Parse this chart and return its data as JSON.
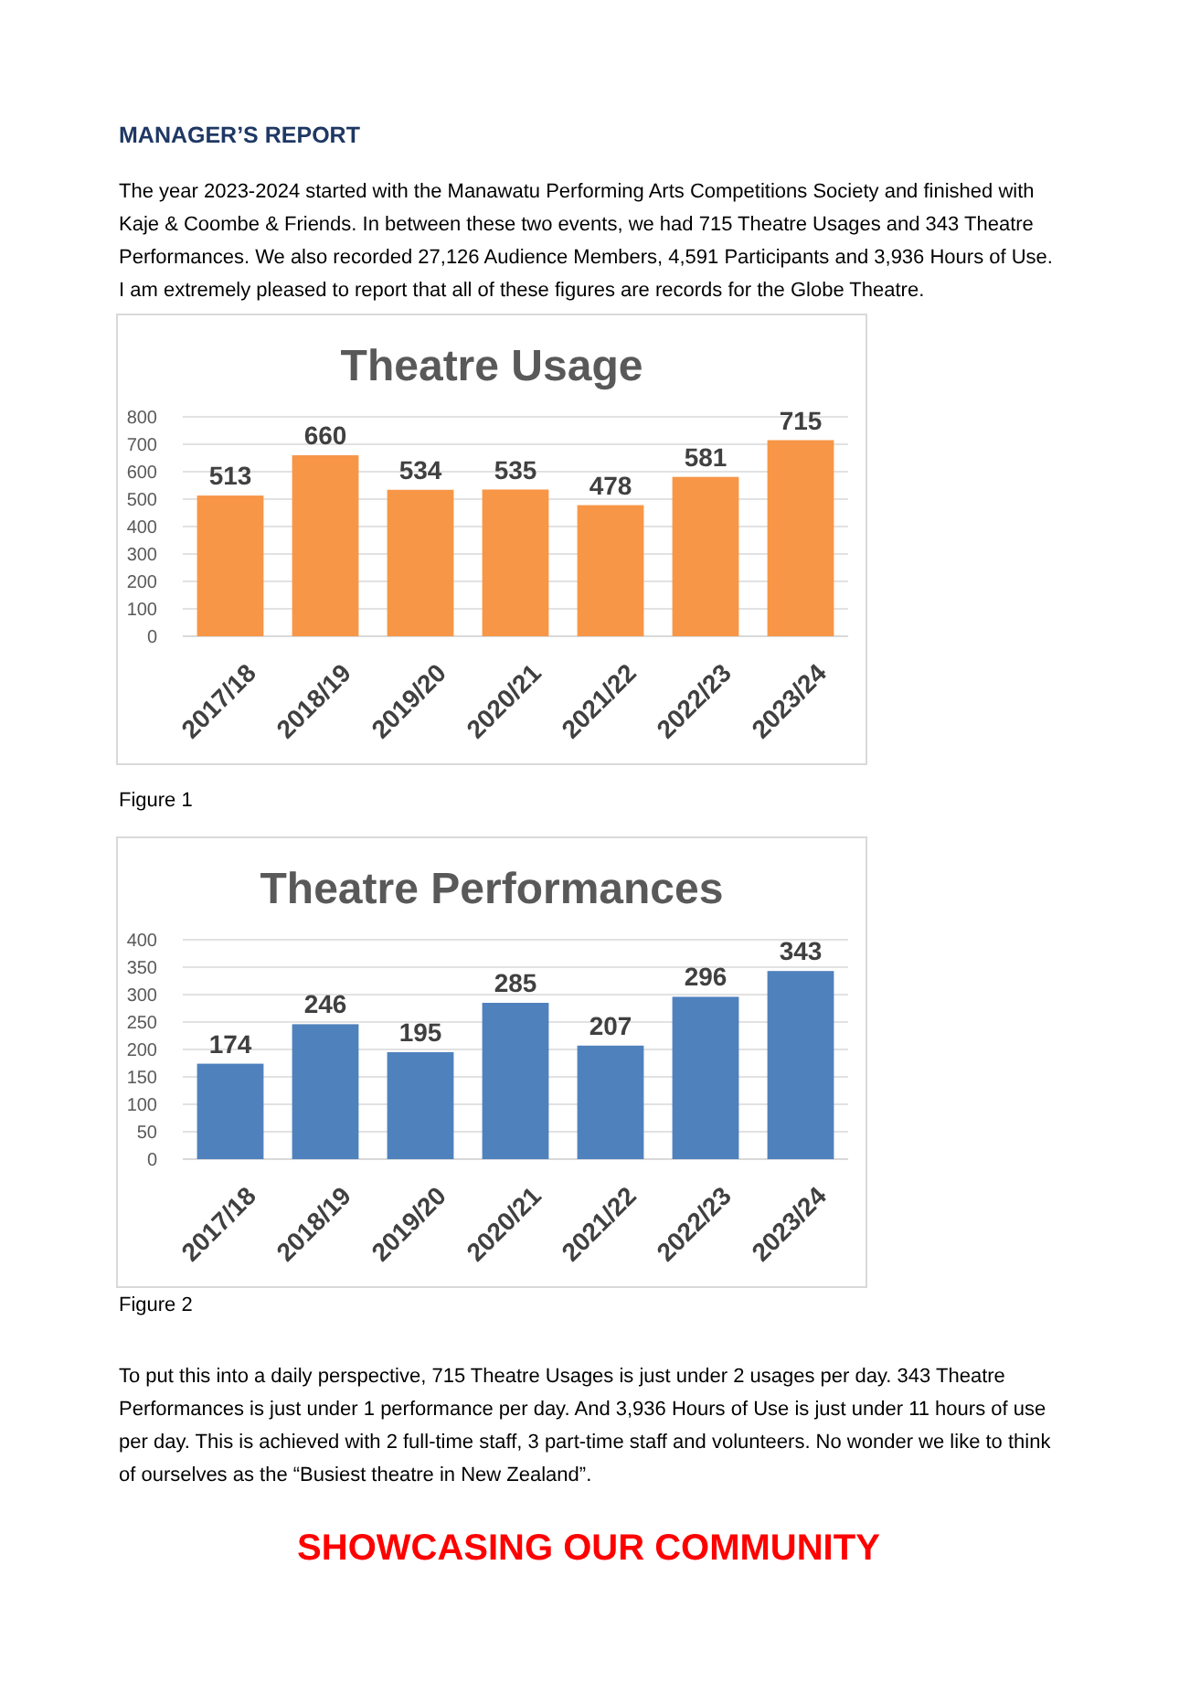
{
  "chart_data": [
    {
      "type": "bar",
      "title": "Theatre Usage",
      "categories": [
        "2017/18",
        "2018/19",
        "2019/20",
        "2020/21",
        "2021/22",
        "2022/23",
        "2023/24"
      ],
      "values": [
        513,
        660,
        534,
        535,
        478,
        581,
        715
      ],
      "color": "#f79646",
      "ylim": [
        0,
        800
      ],
      "yticks": [
        0,
        100,
        200,
        300,
        400,
        500,
        600,
        700,
        800
      ],
      "grid": true,
      "data_labels": true,
      "annotations": [
        "MANAGER’S REPORT",
        "The year 2023-2024 started with the Manawatu Performing Arts Competitions Society and finished with Kaje & Coombe & Friends. In between these two events, we had 715 Theatre Usages and 343 Theatre Performances. We also recorded 27,126 Audience Members, 4,591 Participants and 3,936 Hours of Use. I am extremely pleased to report that all of these figures are records for the Globe Theatre.",
        "Figure 1"
      ]
    },
    {
      "type": "bar",
      "title": "Theatre Performances",
      "categories": [
        "2017/18",
        "2018/19",
        "2019/20",
        "2020/21",
        "2021/22",
        "2022/23",
        "2023/24"
      ],
      "values": [
        174,
        246,
        195,
        285,
        207,
        296,
        343
      ],
      "color": "#4f81bd",
      "ylim": [
        0,
        400
      ],
      "yticks": [
        0,
        50,
        100,
        150,
        200,
        250,
        300,
        350,
        400
      ],
      "grid": true,
      "data_labels": true,
      "annotations": [
        "Figure 2",
        "To put this into a daily perspective, 715 Theatre Usages is just under 2 usages per day. 343 Theatre Performances is just under 1 performance per day. And 3,936 Hours of Use is just under 11 hours of use per day. This is achieved with 2 full-time staff, 3 part-time staff and volunteers. No wonder we like to think of ourselves as the “Busiest theatre in New Zealand”.",
        "SHOWCASING OUR COMMUNITY"
      ]
    }
  ]
}
